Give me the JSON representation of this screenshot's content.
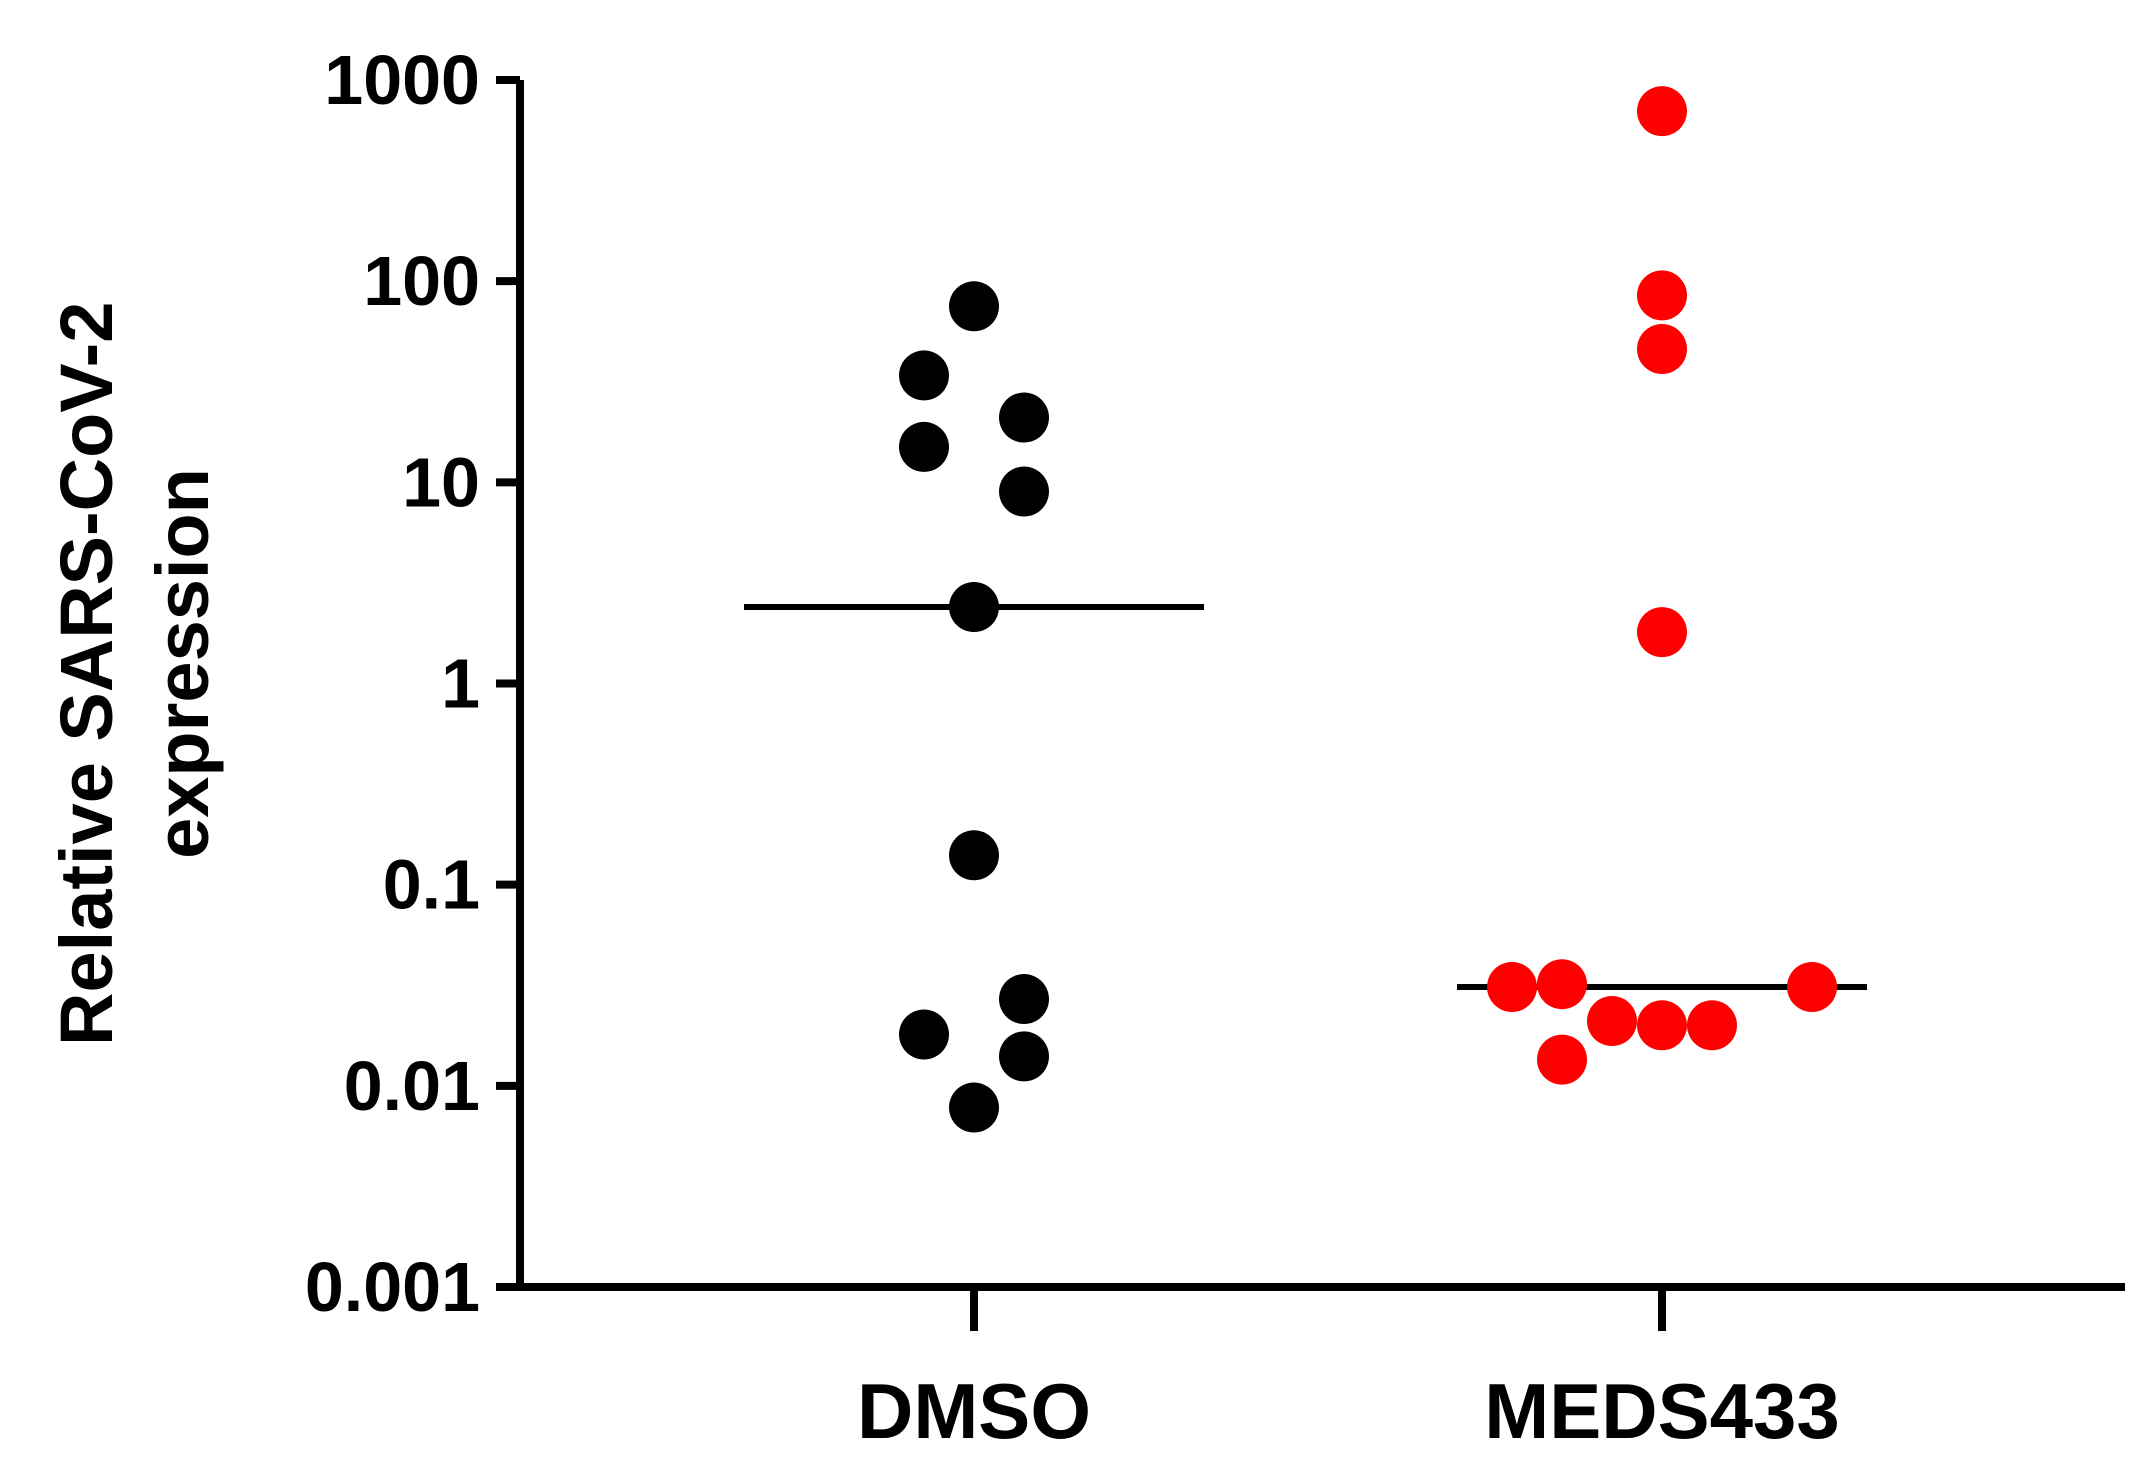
{
  "chart_data": {
    "type": "scatter",
    "title": "",
    "xlabel": "",
    "ylabel_lines": [
      "Relative SARS-CoV-2",
      "expression"
    ],
    "yscale": "log",
    "ylim": [
      0.001,
      1000
    ],
    "yticks": [
      0.001,
      0.01,
      0.1,
      1,
      10,
      100,
      1000
    ],
    "ytick_labels": [
      "0.001",
      "0.01",
      "0.1",
      "1",
      "10",
      "100",
      "1000"
    ],
    "categories": [
      "DMSO",
      "MEDS433"
    ],
    "grid": false,
    "legend": "none",
    "series": [
      {
        "category": "DMSO",
        "color": "#000000",
        "median": 2.4,
        "points": [
          {
            "offset": 0,
            "value": 75
          },
          {
            "offset": -1,
            "value": 34
          },
          {
            "offset": 1,
            "value": 21
          },
          {
            "offset": -1,
            "value": 15
          },
          {
            "offset": 1,
            "value": 9
          },
          {
            "offset": 0,
            "value": 2.4
          },
          {
            "offset": 0,
            "value": 0.14
          },
          {
            "offset": 1,
            "value": 0.027
          },
          {
            "offset": -1,
            "value": 0.018
          },
          {
            "offset": 1,
            "value": 0.014
          },
          {
            "offset": 0,
            "value": 0.0078
          }
        ]
      },
      {
        "category": "MEDS433",
        "color": "#ff0000",
        "median": 0.031,
        "points": [
          {
            "offset": 0,
            "value": 700
          },
          {
            "offset": 0,
            "value": 85
          },
          {
            "offset": 0,
            "value": 46
          },
          {
            "offset": 0,
            "value": 1.8
          },
          {
            "offset": -3,
            "value": 0.031
          },
          {
            "offset": -2,
            "value": 0.032
          },
          {
            "offset": 3,
            "value": 0.031
          },
          {
            "offset": -1,
            "value": 0.021
          },
          {
            "offset": 0,
            "value": 0.02
          },
          {
            "offset": 1,
            "value": 0.02
          },
          {
            "offset": -2,
            "value": 0.0135
          }
        ]
      }
    ]
  }
}
